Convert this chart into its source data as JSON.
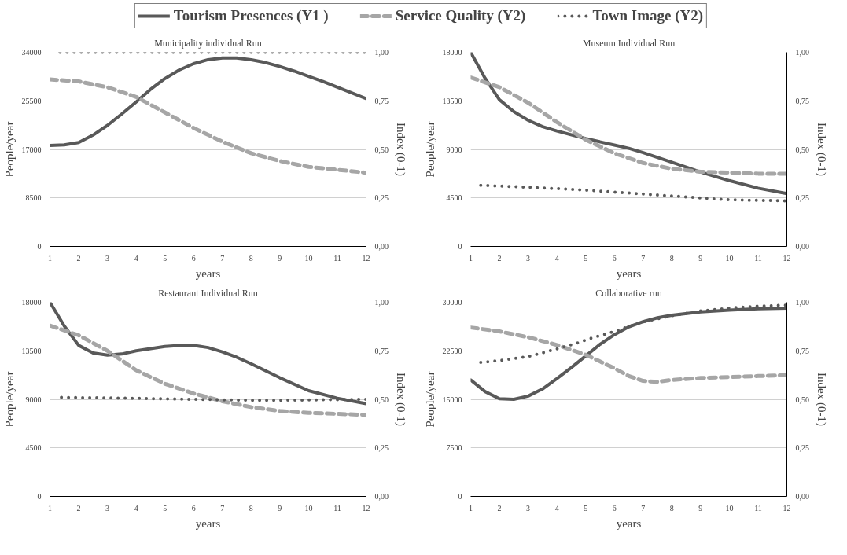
{
  "chart_data": [
    {
      "type": "line",
      "title": "Municipality individual Run",
      "xlabel": "years",
      "ylabel": "People/year",
      "y2label": "Index (0-1)",
      "legend": "top",
      "grid": "y",
      "xlim": [
        1,
        12
      ],
      "xticks": [
        1,
        2,
        3,
        4,
        5,
        6,
        7,
        8,
        9,
        10,
        11,
        12
      ],
      "ylim": [
        0,
        34000
      ],
      "yticks": [
        0,
        8500,
        17000,
        25500,
        34000
      ],
      "y2lim": [
        0,
        1
      ],
      "y2ticks": [
        {
          "value": 0,
          "label": "0,00"
        },
        {
          "value": 0.25,
          "label": "0,25"
        },
        {
          "value": 0.5,
          "label": "0,50"
        },
        {
          "value": 0.75,
          "label": "0,75"
        },
        {
          "value": 1,
          "label": "1,00"
        }
      ],
      "series": [
        {
          "name": "Tourism Presences (Y1 )",
          "color": "#595959",
          "line_style": "solid",
          "x": [
            1,
            1.5,
            2,
            2.5,
            3,
            3.5,
            4,
            4.5,
            5,
            5.5,
            6,
            6.5,
            7,
            7.5,
            8,
            8.5,
            9,
            9.5,
            10,
            10.5,
            11,
            11.5,
            12
          ],
          "values": [
            17700,
            17800,
            18200,
            19500,
            21200,
            23200,
            25300,
            27500,
            29400,
            30900,
            32000,
            32700,
            33000,
            33000,
            32700,
            32200,
            31500,
            30700,
            29800,
            28900,
            27900,
            26900,
            25900
          ]
        },
        {
          "name": "Service Quality (Y2)",
          "color": "#a6a6a6",
          "line_style": "dashed",
          "axis": "y2",
          "x": [
            1,
            2,
            3,
            4,
            5,
            6,
            7,
            8,
            9,
            10,
            11,
            12
          ],
          "values": [
            0.86,
            0.85,
            0.82,
            0.77,
            0.69,
            0.61,
            0.54,
            0.48,
            0.44,
            0.41,
            0.395,
            0.38
          ]
        },
        {
          "name": "Town Image (Y2)",
          "color": "#595959",
          "line_style": "dotted",
          "axis": "y2",
          "x": [
            1.35,
            12
          ],
          "values": [
            1,
            1
          ]
        }
      ]
    },
    {
      "type": "line",
      "title": "Museum Individual Run",
      "xlabel": "years",
      "ylabel": "People/year",
      "y2label": "Index (0-1)",
      "grid": "y",
      "xlim": [
        1,
        12
      ],
      "xticks": [
        1,
        2,
        3,
        4,
        5,
        6,
        7,
        8,
        9,
        10,
        11,
        12
      ],
      "ylim": [
        0,
        18000
      ],
      "yticks": [
        0,
        4500,
        9000,
        13500,
        18000
      ],
      "y2lim": [
        0,
        1
      ],
      "y2ticks": [
        {
          "value": 0,
          "label": "0,00"
        },
        {
          "value": 0.25,
          "label": "0,25"
        },
        {
          "value": 0.5,
          "label": "0,50"
        },
        {
          "value": 0.75,
          "label": "0,75"
        },
        {
          "value": 1,
          "label": "1,00"
        }
      ],
      "series": [
        {
          "color": "#595959",
          "line_style": "solid",
          "x": [
            1,
            1.5,
            2,
            2.5,
            3,
            3.5,
            4,
            5,
            6,
            6.5,
            7,
            8,
            9,
            10,
            11,
            12
          ],
          "values": [
            18000,
            15600,
            13600,
            12500,
            11700,
            11100,
            10700,
            10000,
            9400,
            9100,
            8700,
            7800,
            6900,
            6100,
            5400,
            4900
          ]
        },
        {
          "color": "#a6a6a6",
          "line_style": "dashed",
          "axis": "y2",
          "x": [
            1,
            2,
            3,
            4,
            5,
            6,
            7,
            8,
            9,
            10,
            11,
            12
          ],
          "values": [
            0.87,
            0.82,
            0.74,
            0.64,
            0.55,
            0.48,
            0.43,
            0.4,
            0.385,
            0.38,
            0.375,
            0.375
          ]
        },
        {
          "color": "#595959",
          "line_style": "dotted",
          "axis": "y2",
          "x": [
            1.35,
            3,
            5,
            7,
            9,
            10,
            12
          ],
          "values": [
            0.315,
            0.305,
            0.29,
            0.27,
            0.25,
            0.24,
            0.235
          ]
        }
      ]
    },
    {
      "type": "line",
      "title": "Restaurant Individual Run",
      "xlabel": "years",
      "ylabel": "People/year",
      "y2label": "Index (0-1)",
      "grid": "y",
      "xlim": [
        1,
        12
      ],
      "xticks": [
        1,
        2,
        3,
        4,
        5,
        6,
        7,
        8,
        9,
        10,
        11,
        12
      ],
      "ylim": [
        0,
        18000
      ],
      "yticks": [
        0,
        4500,
        9000,
        13500,
        18000
      ],
      "y2lim": [
        0,
        1
      ],
      "y2ticks": [
        {
          "value": 0,
          "label": "0,00"
        },
        {
          "value": 0.25,
          "label": "0,25"
        },
        {
          "value": 0.5,
          "label": "0,50"
        },
        {
          "value": 0.75,
          "label": "0,75"
        },
        {
          "value": 1,
          "label": "1,00"
        }
      ],
      "series": [
        {
          "color": "#595959",
          "line_style": "solid",
          "x": [
            1,
            1.5,
            2,
            2.5,
            3,
            3.5,
            4,
            5,
            5.5,
            6,
            6.5,
            7,
            7.5,
            8,
            9,
            10,
            11,
            12
          ],
          "values": [
            18000,
            15800,
            14000,
            13300,
            13100,
            13200,
            13500,
            13900,
            14000,
            14000,
            13800,
            13400,
            12900,
            12300,
            11000,
            9800,
            9100,
            8600
          ]
        },
        {
          "color": "#a6a6a6",
          "line_style": "dashed",
          "axis": "y2",
          "x": [
            1,
            2,
            3,
            4,
            5,
            6,
            7,
            8,
            9,
            10,
            11,
            12
          ],
          "values": [
            0.88,
            0.83,
            0.75,
            0.65,
            0.58,
            0.53,
            0.49,
            0.46,
            0.44,
            0.43,
            0.425,
            0.42
          ]
        },
        {
          "color": "#595959",
          "line_style": "dotted",
          "axis": "y2",
          "x": [
            1.4,
            4,
            6,
            8,
            9,
            12
          ],
          "values": [
            0.51,
            0.505,
            0.5,
            0.495,
            0.495,
            0.5
          ]
        }
      ]
    },
    {
      "type": "line",
      "title": "Collaborative run",
      "xlabel": "years",
      "ylabel": "People/year",
      "y2label": "Index (0-1)",
      "grid": "y",
      "xlim": [
        1,
        12
      ],
      "xticks": [
        1,
        2,
        3,
        4,
        5,
        6,
        7,
        8,
        9,
        10,
        11,
        12
      ],
      "ylim": [
        0,
        30000
      ],
      "yticks": [
        0,
        7500,
        15000,
        22500,
        30000
      ],
      "y2lim": [
        0,
        1
      ],
      "y2ticks": [
        {
          "value": 0,
          "label": "0,00"
        },
        {
          "value": 0.25,
          "label": "0,25"
        },
        {
          "value": 0.5,
          "label": "0,50"
        },
        {
          "value": 0.75,
          "label": "0,75"
        },
        {
          "value": 1,
          "label": "1,00"
        }
      ],
      "series": [
        {
          "color": "#595959",
          "line_style": "solid",
          "x": [
            1,
            1.5,
            2,
            2.5,
            3,
            3.5,
            4,
            4.5,
            5,
            5.5,
            6,
            6.5,
            7,
            7.5,
            8,
            9,
            10,
            11,
            12
          ],
          "values": [
            18000,
            16200,
            15100,
            15000,
            15500,
            16600,
            18200,
            19900,
            21700,
            23500,
            25000,
            26200,
            27000,
            27600,
            28000,
            28500,
            28800,
            29000,
            29100
          ]
        },
        {
          "color": "#a6a6a6",
          "line_style": "dashed",
          "axis": "y2",
          "x": [
            1,
            2,
            3,
            4,
            5,
            6,
            6.5,
            7,
            7.5,
            8,
            9,
            10,
            11,
            12
          ],
          "values": [
            0.87,
            0.85,
            0.82,
            0.78,
            0.73,
            0.66,
            0.62,
            0.595,
            0.59,
            0.6,
            0.61,
            0.615,
            0.62,
            0.625
          ]
        },
        {
          "color": "#595959",
          "line_style": "dotted",
          "axis": "y2",
          "x": [
            1.35,
            2,
            3,
            4,
            4.7,
            5.3,
            6,
            7,
            8,
            9,
            10,
            11,
            12
          ],
          "values": [
            0.69,
            0.7,
            0.72,
            0.76,
            0.79,
            0.82,
            0.85,
            0.9,
            0.93,
            0.955,
            0.97,
            0.98,
            0.985
          ]
        }
      ]
    }
  ]
}
